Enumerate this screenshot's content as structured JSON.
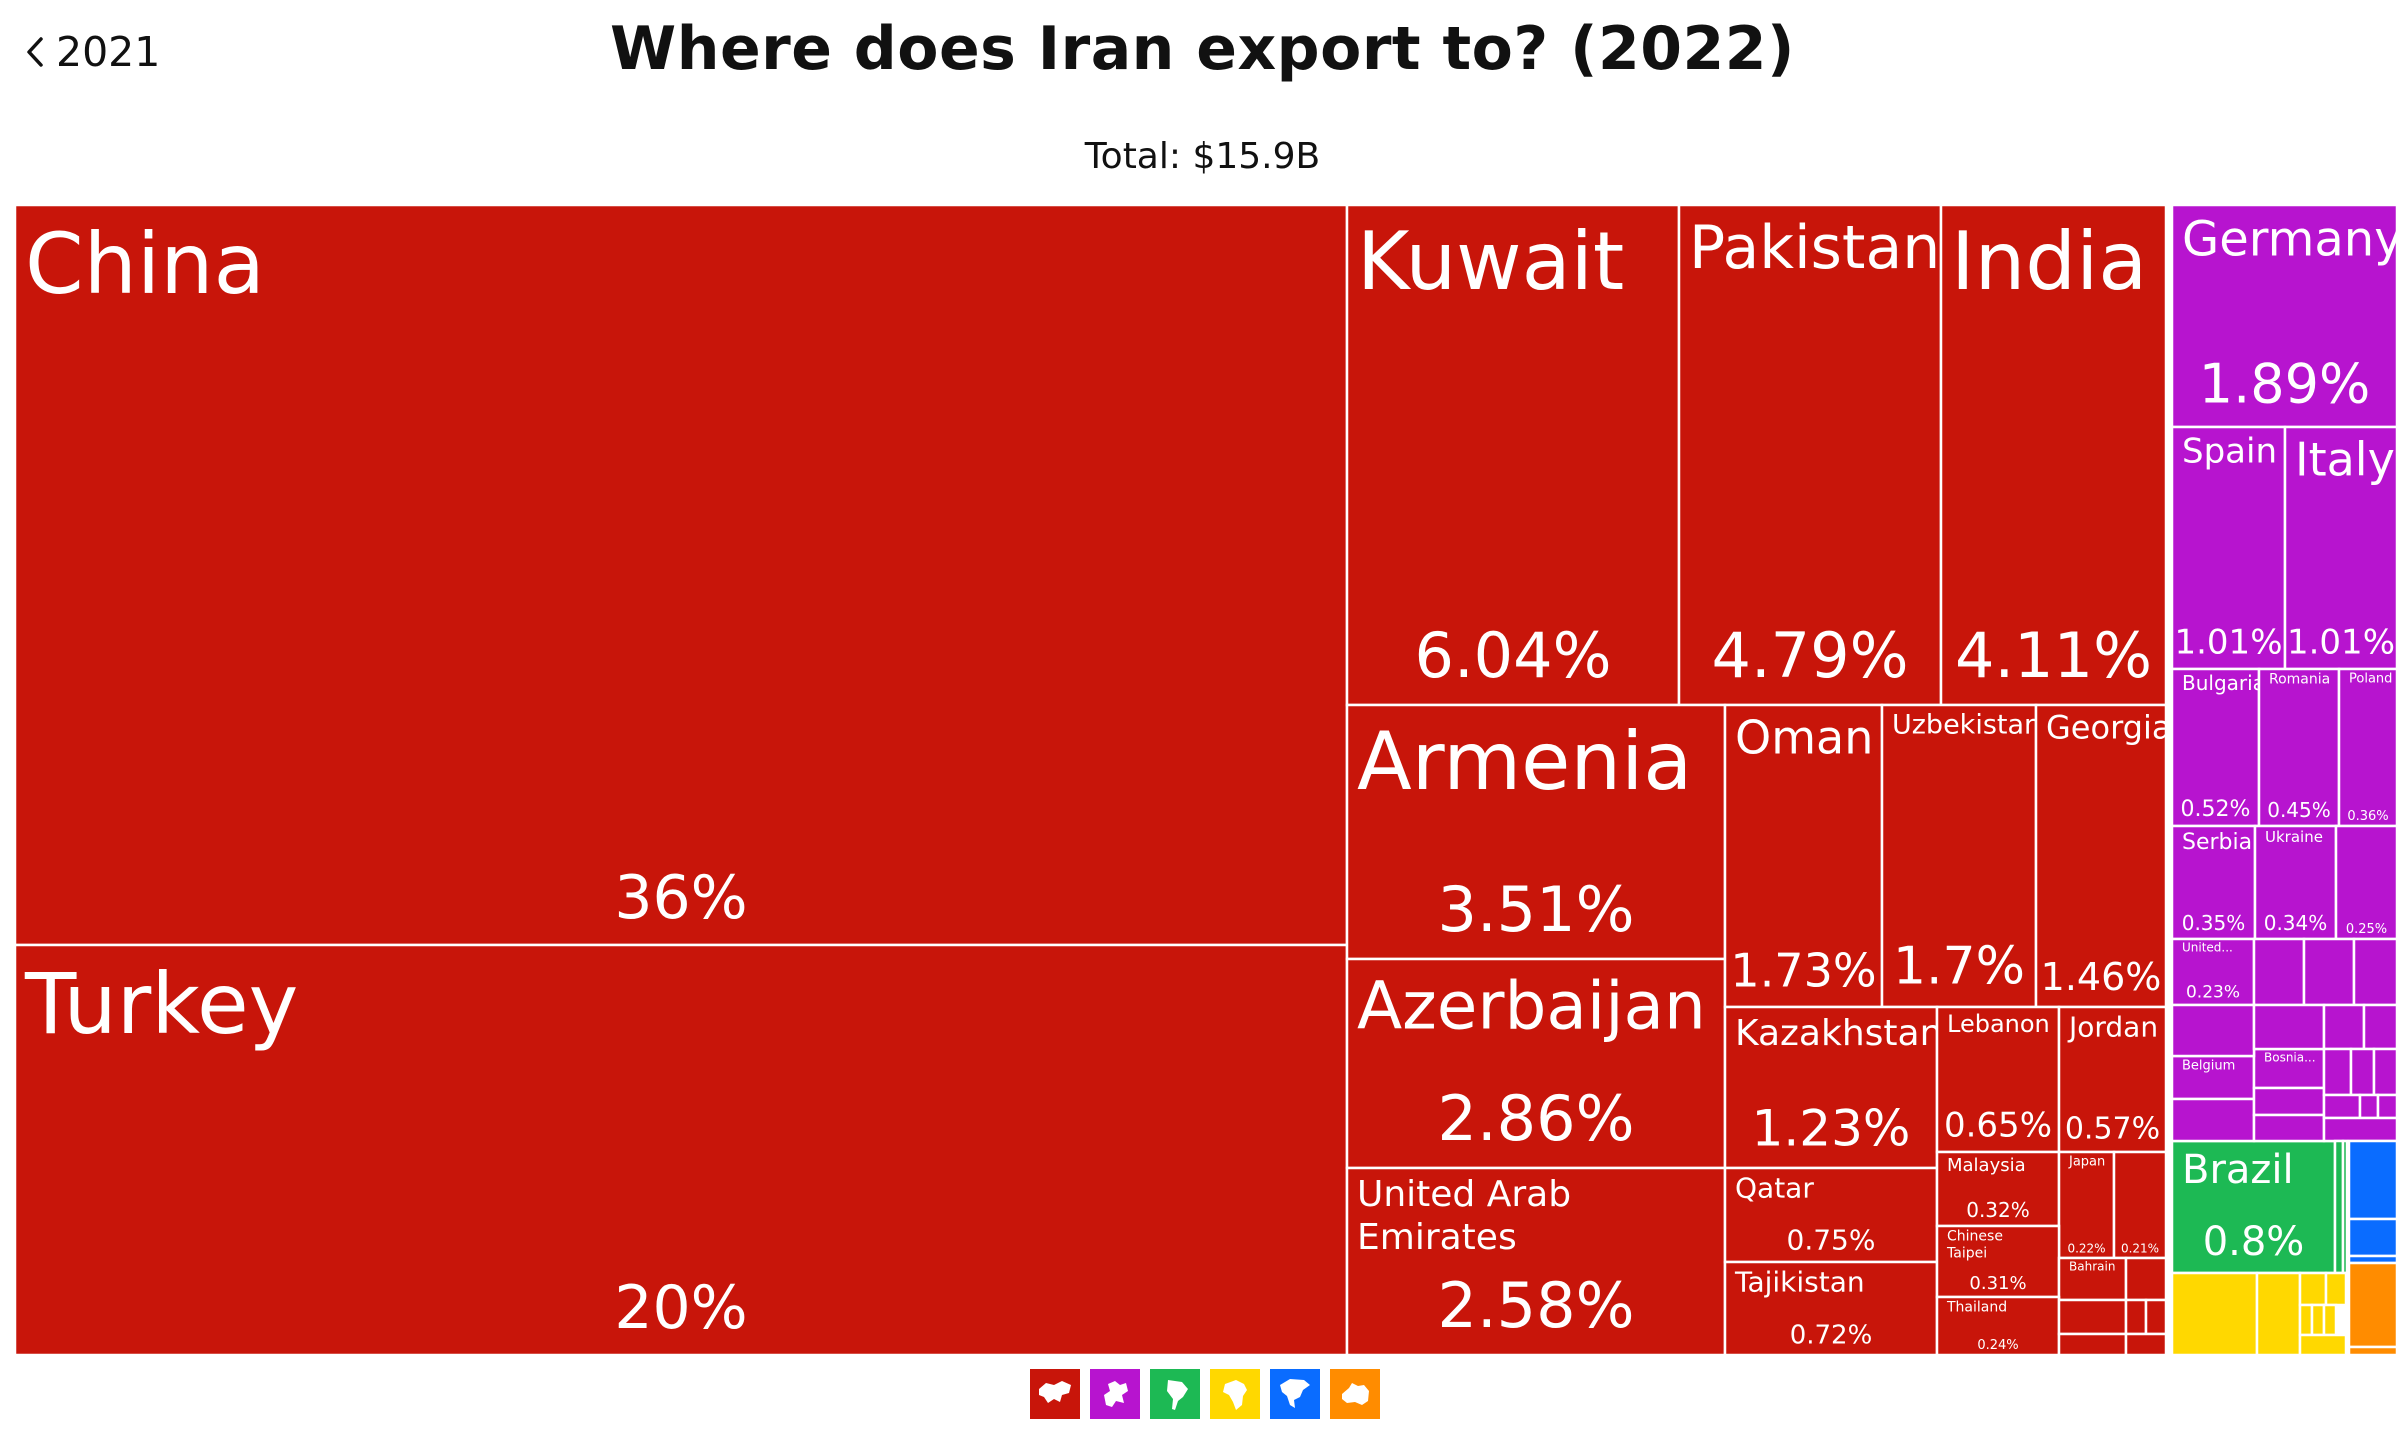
{
  "nav": {
    "back_label": "2021"
  },
  "header": {
    "title": "Where does Iran export to? (2022)",
    "total": "Total: $15.9B"
  },
  "colors": {
    "Asia": "#c8150a",
    "Europe": "#b714cf",
    "South America": "#1db954",
    "Africa": "#ffd800",
    "North America": "#0a6cff",
    "Oceania": "#ff8c00"
  },
  "legend": [
    {
      "region": "Asia",
      "icon": "asia-map-icon",
      "color": "#c8150a"
    },
    {
      "region": "Europe",
      "icon": "europe-map-icon",
      "color": "#b714cf"
    },
    {
      "region": "South America",
      "icon": "south-america-map-icon",
      "color": "#1db954"
    },
    {
      "region": "Africa",
      "icon": "africa-map-icon",
      "color": "#ffd800"
    },
    {
      "region": "North America",
      "icon": "north-america-map-icon",
      "color": "#0a6cff"
    },
    {
      "region": "Oceania",
      "icon": "oceania-map-icon",
      "color": "#ff8c00"
    }
  ],
  "chart_data": {
    "type": "treemap",
    "title": "Where does Iran export to? (2022)",
    "total": "$15.9B",
    "unit": "% of exports",
    "items": [
      {
        "name": "China",
        "region": "Asia",
        "value": 36,
        "label": "36%"
      },
      {
        "name": "Turkey",
        "region": "Asia",
        "value": 20,
        "label": "20%"
      },
      {
        "name": "Kuwait",
        "region": "Asia",
        "value": 6.04,
        "label": "6.04%"
      },
      {
        "name": "Pakistan",
        "region": "Asia",
        "value": 4.79,
        "label": "4.79%"
      },
      {
        "name": "India",
        "region": "Asia",
        "value": 4.11,
        "label": "4.11%"
      },
      {
        "name": "Armenia",
        "region": "Asia",
        "value": 3.51,
        "label": "3.51%"
      },
      {
        "name": "Azerbaijan",
        "region": "Asia",
        "value": 2.86,
        "label": "2.86%"
      },
      {
        "name": "United Arab Emirates",
        "region": "Asia",
        "value": 2.58,
        "label": "2.58%"
      },
      {
        "name": "Oman",
        "region": "Asia",
        "value": 1.73,
        "label": "1.73%"
      },
      {
        "name": "Uzbekistan",
        "region": "Asia",
        "value": 1.7,
        "label": "1.7%"
      },
      {
        "name": "Georgia",
        "region": "Asia",
        "value": 1.46,
        "label": "1.46%"
      },
      {
        "name": "Kazakhstan",
        "region": "Asia",
        "value": 1.23,
        "label": "1.23%"
      },
      {
        "name": "Lebanon",
        "region": "Asia",
        "value": 0.65,
        "label": "0.65%"
      },
      {
        "name": "Jordan",
        "region": "Asia",
        "value": 0.57,
        "label": "0.57%"
      },
      {
        "name": "Qatar",
        "region": "Asia",
        "value": 0.75,
        "label": "0.75%"
      },
      {
        "name": "Tajikistan",
        "region": "Asia",
        "value": 0.72,
        "label": "0.72%"
      },
      {
        "name": "Malaysia",
        "region": "Asia",
        "value": 0.32,
        "label": "0.32%"
      },
      {
        "name": "Japan",
        "region": "Asia",
        "value": 0.22,
        "label": "0.22%"
      },
      {
        "name": "",
        "region": "Asia",
        "value": 0.21,
        "label": "0.21%"
      },
      {
        "name": "Chinese Taipei",
        "region": "Asia",
        "value": 0.31,
        "label": "0.31%"
      },
      {
        "name": "Bahrain",
        "region": "Asia",
        "value": null,
        "label": ""
      },
      {
        "name": "Thailand",
        "region": "Asia",
        "value": 0.24,
        "label": "0.24%"
      },
      {
        "name": "Germany",
        "region": "Europe",
        "value": 1.89,
        "label": "1.89%"
      },
      {
        "name": "Spain",
        "region": "Europe",
        "value": 1.01,
        "label": "1.01%"
      },
      {
        "name": "Italy",
        "region": "Europe",
        "value": 1.01,
        "label": "1.01%"
      },
      {
        "name": "Bulgaria",
        "region": "Europe",
        "value": 0.52,
        "label": "0.52%"
      },
      {
        "name": "Romania",
        "region": "Europe",
        "value": 0.45,
        "label": "0.45%"
      },
      {
        "name": "Poland",
        "region": "Europe",
        "value": 0.36,
        "label": "0.36%"
      },
      {
        "name": "Serbia",
        "region": "Europe",
        "value": 0.35,
        "label": "0.35%"
      },
      {
        "name": "Ukraine",
        "region": "Europe",
        "value": 0.34,
        "label": "0.34%"
      },
      {
        "name": "",
        "region": "Europe",
        "value": 0.25,
        "label": "0.25%"
      },
      {
        "name": "United...",
        "region": "Europe",
        "value": 0.23,
        "label": "0.23%"
      },
      {
        "name": "Belgium",
        "region": "Europe",
        "value": null,
        "label": ""
      },
      {
        "name": "Bosnia...",
        "region": "Europe",
        "value": null,
        "label": ""
      },
      {
        "name": "Brazil",
        "region": "South America",
        "value": 0.8,
        "label": "0.8%"
      }
    ]
  }
}
